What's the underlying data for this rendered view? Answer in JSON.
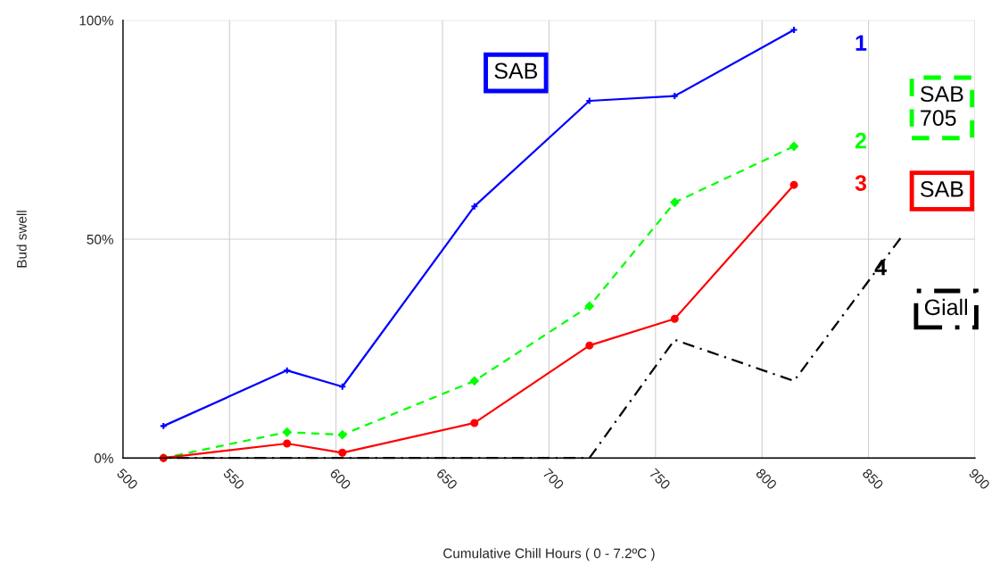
{
  "chart_data": {
    "type": "line",
    "xlabel": "Cumulative Chill Hours ( 0 - 7.2ºC )",
    "ylabel": "Bud swell",
    "xlim": [
      500,
      900
    ],
    "xticks": [
      500,
      550,
      600,
      650,
      700,
      750,
      800,
      850,
      900
    ],
    "ylim": [
      0,
      100
    ],
    "yticks": [
      {
        "value": 0,
        "label": "0%"
      },
      {
        "value": 50,
        "label": "50%"
      },
      {
        "value": 100,
        "label": "100%"
      }
    ],
    "grid": true,
    "series": [
      {
        "name": "SAB",
        "color": "#0000ff",
        "marker": "cross",
        "line_style": "solid",
        "x": [
          519,
          577,
          603,
          665,
          719,
          759,
          815
        ],
        "values": [
          7.3,
          20,
          16.3,
          57.5,
          81.6,
          82.7,
          97.8
        ]
      },
      {
        "name": "SAB 705",
        "color": "#00ff00",
        "marker": "diamond",
        "line_style": "dashed",
        "x": [
          519,
          577,
          603,
          665,
          719,
          759,
          815
        ],
        "values": [
          0,
          5.9,
          5.3,
          17.6,
          34.7,
          58.4,
          71.2
        ]
      },
      {
        "name": "SAB",
        "color": "#ff0000",
        "marker": "circle",
        "line_style": "solid",
        "x": [
          519,
          577,
          603,
          665,
          719,
          759,
          815
        ],
        "values": [
          0,
          3.3,
          1.2,
          8.0,
          25.7,
          31.8,
          62.4
        ]
      },
      {
        "name": "Giall",
        "color": "#000000",
        "marker": "none",
        "line_style": "dashdot",
        "x": [
          519,
          577,
          603,
          665,
          719,
          759,
          815,
          865
        ],
        "values": [
          0,
          0,
          0,
          0,
          0,
          27,
          17.6,
          50.2
        ]
      }
    ],
    "annotations": [
      "1",
      "2",
      "3",
      "4"
    ]
  }
}
